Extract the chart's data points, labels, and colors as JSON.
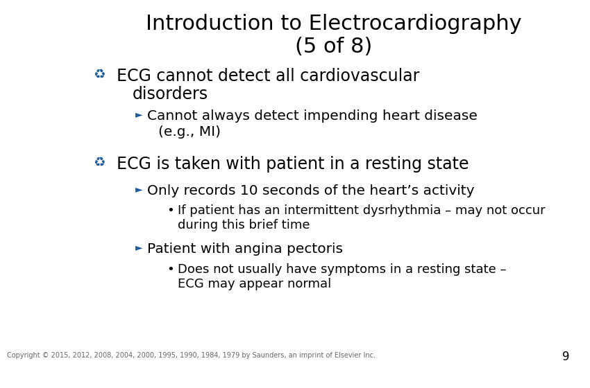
{
  "title_line1": "Introduction to Electrocardiography",
  "title_line2": "(5 of 8)",
  "title_fontsize": 22,
  "title_color": "#000000",
  "bg_color": "#ffffff",
  "bullet_color": "#1F5C99",
  "text_color": "#000000",
  "bullet1_text_line1": "ECG cannot detect all cardiovascular",
  "bullet1_text_line2": "disorders",
  "sub1_text_line1": "Cannot always detect impending heart disease",
  "sub1_text_line2": "(e.g., MI)",
  "bullet2_text": "ECG is taken with patient in a resting state",
  "sub2_text": "Only records 10 seconds of the heart’s activity",
  "sub2_bullet_line1": "If patient has an intermittent dysrhythmia – may not occur",
  "sub2_bullet_line2": "during this brief time",
  "sub3_text": "Patient with angina pectoris",
  "sub3_bullet_line1": "Does not usually have symptoms in a resting state –",
  "sub3_bullet_line2": "ECG may appear normal",
  "copyright": "Copyright © 2015, 2012, 2008, 2004, 2000, 1995, 1990, 1984, 1979 by Saunders, an imprint of Elsevier Inc.",
  "page_num": "9",
  "main_bullet_fontsize": 17,
  "sub_fontsize": 14.5,
  "sub_bullet_fontsize": 13
}
